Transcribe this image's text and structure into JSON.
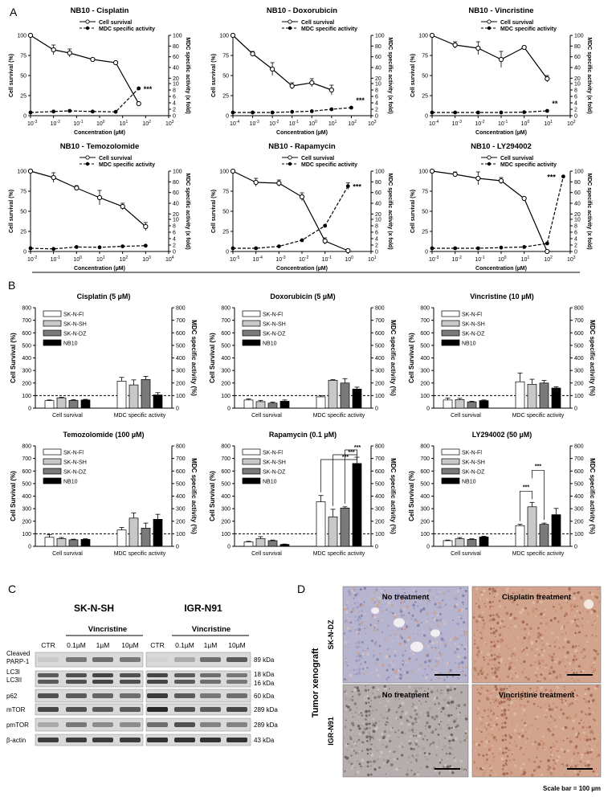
{
  "panel_letters": [
    "A",
    "B",
    "C",
    "D"
  ],
  "colors": {
    "sk_n_fl": "#ffffff",
    "sk_n_sh": "#c8c8c8",
    "sk_n_dz": "#7a7a7a",
    "nb10": "#000000",
    "ihc_blue": "#9a9ab8",
    "ihc_brown": "#c89478"
  },
  "chart_data": [
    {
      "panel": "A",
      "type": "line",
      "title": "NB10 - Cisplatin",
      "xlabel": "Concentration (µM)",
      "ylabel": "Cell survival (%)",
      "y2label": "MDC specific activity (x fold)",
      "x_scale": "log",
      "xlim_exp": [
        -3,
        3
      ],
      "legend": [
        "Cell survival",
        "MDC specific activity"
      ],
      "series": [
        {
          "name": "Cell survival",
          "x_exp": [
            -3,
            -2,
            -1.3,
            -0.3,
            0.7,
            1.7
          ],
          "values": [
            100,
            82,
            78,
            70,
            66,
            15
          ],
          "err": [
            0,
            6,
            5,
            0,
            0,
            0
          ]
        },
        {
          "name": "MDC specific activity",
          "x_exp": [
            -3,
            -2,
            -1.3,
            -0.3,
            0.7,
            1.7
          ],
          "values": [
            1,
            1.3,
            1.5,
            1.3,
            1.2,
            8.5
          ]
        }
      ],
      "annotation": "***"
    },
    {
      "panel": "A",
      "type": "line",
      "title": "NB10 - Doxorubicin",
      "xlabel": "Concentration (µM)",
      "ylabel": "Cell survival (%)",
      "y2label": "MDC specific activity (x fold)",
      "x_scale": "log",
      "xlim_exp": [
        -4,
        3
      ],
      "legend": [
        "Cell survival",
        "MDC specific activity"
      ],
      "series": [
        {
          "name": "Cell survival",
          "x_exp": [
            -4,
            -3,
            -2,
            -1,
            0,
            1,
            2
          ],
          "values": [
            100,
            77,
            58,
            37,
            41,
            32,
            null
          ],
          "err": [
            0,
            3,
            8,
            4,
            5,
            6,
            0
          ]
        },
        {
          "name": "MDC specific activity",
          "x_exp": [
            -4,
            -3,
            -2,
            -1,
            0,
            1,
            2
          ],
          "values": [
            1,
            1,
            1,
            1.2,
            1.4,
            2,
            2.5
          ]
        }
      ],
      "annotation": "***"
    },
    {
      "panel": "A",
      "type": "line",
      "title": "NB10 - Vincristine",
      "xlabel": "Concentration (µM)",
      "ylabel": "Cell survival (%)",
      "y2label": "MDC specific activity (x fold)",
      "x_scale": "log",
      "xlim_exp": [
        -4,
        2
      ],
      "legend": [
        "Cell survival",
        "MDC specific activity"
      ],
      "series": [
        {
          "name": "Cell survival",
          "x_exp": [
            -4,
            -3,
            -2,
            -1,
            0,
            1
          ],
          "values": [
            100,
            88,
            84,
            70,
            85,
            46
          ],
          "err": [
            0,
            4,
            8,
            10,
            0,
            4
          ]
        },
        {
          "name": "MDC specific activity",
          "x_exp": [
            -4,
            -3,
            -2,
            -1,
            0,
            1
          ],
          "values": [
            1,
            1,
            1,
            1,
            1.1,
            1.5
          ]
        }
      ],
      "annotation": "**"
    },
    {
      "panel": "A",
      "type": "line",
      "title": "NB10 - Temozolomide",
      "xlabel": "Concentration (µM)",
      "ylabel": "Cell survival (%)",
      "y2label": "MDC specific activity (x fold)",
      "x_scale": "log",
      "xlim_exp": [
        -2,
        4
      ],
      "legend": [
        "Cell survival",
        "MDC specific activity"
      ],
      "series": [
        {
          "name": "Cell survival",
          "x_exp": [
            -2,
            -1,
            0,
            1,
            2,
            3
          ],
          "values": [
            100,
            92,
            79,
            67,
            56,
            31
          ],
          "err": [
            0,
            6,
            3,
            9,
            4,
            5
          ]
        },
        {
          "name": "MDC specific activity",
          "x_exp": [
            -2,
            -1,
            0,
            1,
            2,
            3
          ],
          "values": [
            1,
            0.8,
            1.4,
            1.3,
            1.6,
            1.8
          ]
        }
      ],
      "annotation": ""
    },
    {
      "panel": "A",
      "type": "line",
      "title": "NB10 - Rapamycin",
      "xlabel": "Concentration (µM)",
      "ylabel": "Cell survival (%)",
      "y2label": "MDC specific activity (x fold)",
      "x_scale": "log",
      "xlim_exp": [
        -5,
        1
      ],
      "legend": [
        "Cell survival",
        "MDC specific activity"
      ],
      "series": [
        {
          "name": "Cell survival",
          "x_exp": [
            -5,
            -4,
            -3,
            -2,
            -1,
            0
          ],
          "values": [
            100,
            86,
            85,
            68,
            13,
            1
          ],
          "err": [
            0,
            5,
            4,
            5,
            4,
            0
          ]
        },
        {
          "name": "MDC specific activity",
          "x_exp": [
            -5,
            -4,
            -3,
            -2,
            -1,
            0
          ],
          "values": [
            1,
            1,
            1.6,
            3.5,
            8,
            72
          ],
          "err": [
            0,
            0,
            0,
            0,
            0,
            6
          ]
        }
      ],
      "annotation": "***"
    },
    {
      "panel": "A",
      "type": "line",
      "title": "NB10 - LY294002",
      "xlabel": "Concentration (µM)",
      "ylabel": "Cell survival (%)",
      "y2label": "MDC specific activity (x fold)",
      "x_scale": "log",
      "xlim_exp": [
        -3,
        3
      ],
      "legend": [
        "Cell survival",
        "MDC specific activity"
      ],
      "series": [
        {
          "name": "Cell survival",
          "x_exp": [
            -3,
            -2,
            -1,
            0,
            1,
            2,
            2.7
          ],
          "values": [
            100,
            96,
            91,
            88,
            66,
            0,
            null
          ],
          "err": [
            0,
            3,
            8,
            4,
            0,
            0,
            0
          ]
        },
        {
          "name": "MDC specific activity",
          "x_exp": [
            -3,
            -2,
            -1,
            0,
            1,
            2,
            2.7
          ],
          "values": [
            1,
            1,
            1,
            1.2,
            1.4,
            2.5,
            90
          ]
        }
      ],
      "annotation": "***"
    },
    {
      "panel": "B",
      "type": "bar",
      "title": "Cisplatin (5 µM)",
      "categories": [
        "Cell survival",
        "MDC specific activity"
      ],
      "ylabel": "Cell Survival (%)",
      "y2label": "MDC specific activity (%)",
      "ylim": [
        0,
        800
      ],
      "baseline": 100,
      "series": [
        {
          "name": "SK-N-Fl",
          "values": [
            60,
            215
          ],
          "err": [
            5,
            30
          ]
        },
        {
          "name": "SK-N-SH",
          "values": [
            82,
            185
          ],
          "err": [
            5,
            40
          ]
        },
        {
          "name": "SK-N-DZ",
          "values": [
            62,
            228
          ],
          "err": [
            5,
            25
          ]
        },
        {
          "name": "NB10",
          "values": [
            65,
            105
          ],
          "err": [
            5,
            18
          ]
        }
      ],
      "annotation": ""
    },
    {
      "panel": "B",
      "type": "bar",
      "title": "Doxorubicin (5 µM)",
      "categories": [
        "Cell survival",
        "MDC specific activity"
      ],
      "ylabel": "Cell Survival (%)",
      "y2label": "MDC specific activity (%)",
      "ylim": [
        0,
        800
      ],
      "baseline": 100,
      "series": [
        {
          "name": "SK-N-Fl",
          "values": [
            65,
            90
          ],
          "err": [
            8,
            10
          ]
        },
        {
          "name": "SK-N-SH",
          "values": [
            52,
            222
          ],
          "err": [
            10,
            5
          ]
        },
        {
          "name": "SK-N-DZ",
          "values": [
            40,
            200
          ],
          "err": [
            8,
            35
          ]
        },
        {
          "name": "NB10",
          "values": [
            55,
            152
          ],
          "err": [
            10,
            15
          ]
        }
      ],
      "annotation": ""
    },
    {
      "panel": "B",
      "type": "bar",
      "title": "Vincristine (10 µM)",
      "categories": [
        "Cell survival",
        "MDC specific activity"
      ],
      "ylabel": "Cell Survival (%)",
      "y2label": "MDC specific activity (%)",
      "ylim": [
        0,
        800
      ],
      "baseline": 100,
      "series": [
        {
          "name": "SK-N-Fl",
          "values": [
            65,
            210
          ],
          "err": [
            15,
            70
          ]
        },
        {
          "name": "SK-N-SH",
          "values": [
            68,
            190
          ],
          "err": [
            10,
            40
          ]
        },
        {
          "name": "SK-N-DZ",
          "values": [
            50,
            200
          ],
          "err": [
            5,
            20
          ]
        },
        {
          "name": "NB10",
          "values": [
            60,
            160
          ],
          "err": [
            5,
            10
          ]
        }
      ],
      "annotation": ""
    },
    {
      "panel": "B",
      "type": "bar",
      "title": "Temozolomide (100 µM)",
      "categories": [
        "Cell survival",
        "MDC specific activity"
      ],
      "ylabel": "Cell Survival (%)",
      "y2label": "MDC specific activity (%)",
      "ylim": [
        0,
        800
      ],
      "baseline": 100,
      "series": [
        {
          "name": "SK-N-Fl",
          "values": [
            72,
            130
          ],
          "err": [
            20,
            20
          ]
        },
        {
          "name": "SK-N-SH",
          "values": [
            62,
            225
          ],
          "err": [
            8,
            40
          ]
        },
        {
          "name": "SK-N-DZ",
          "values": [
            52,
            145
          ],
          "err": [
            5,
            40
          ]
        },
        {
          "name": "NB10",
          "values": [
            55,
            215
          ],
          "err": [
            5,
            40
          ]
        }
      ],
      "annotation": ""
    },
    {
      "panel": "B",
      "type": "bar",
      "title": "Rapamycin (0.1 µM)",
      "categories": [
        "Cell survival",
        "MDC specific activity"
      ],
      "ylabel": "Cell Survival (%)",
      "y2label": "MDC specific activity (%)",
      "ylim": [
        0,
        800
      ],
      "baseline": 100,
      "series": [
        {
          "name": "SK-N-Fl",
          "values": [
            35,
            355
          ],
          "err": [
            5,
            50
          ]
        },
        {
          "name": "SK-N-SH",
          "values": [
            62,
            235
          ],
          "err": [
            15,
            60
          ]
        },
        {
          "name": "SK-N-DZ",
          "values": [
            45,
            305
          ],
          "err": [
            5,
            10
          ]
        },
        {
          "name": "NB10",
          "values": [
            15,
            660
          ],
          "err": [
            3,
            50
          ]
        }
      ],
      "annotation": "***"
    },
    {
      "panel": "B",
      "type": "bar",
      "title": "LY294002 (50 µM)",
      "categories": [
        "Cell survival",
        "MDC specific activity"
      ],
      "ylabel": "Cell Survival (%)",
      "y2label": "MDC specific activity (%)",
      "ylim": [
        0,
        800
      ],
      "baseline": 100,
      "series": [
        {
          "name": "SK-N-Fl",
          "values": [
            45,
            165
          ],
          "err": [
            5,
            10
          ]
        },
        {
          "name": "SK-N-SH",
          "values": [
            60,
            315
          ],
          "err": [
            10,
            35
          ]
        },
        {
          "name": "SK-N-DZ",
          "values": [
            55,
            175
          ],
          "err": [
            5,
            10
          ]
        },
        {
          "name": "NB10",
          "values": [
            75,
            252
          ],
          "err": [
            5,
            50
          ]
        }
      ],
      "annotation": "***"
    }
  ],
  "legend_b": [
    "SK-N-Fl",
    "SK-N-SH",
    "SK-N-DZ",
    "NB10"
  ],
  "blot": {
    "cell_lines": [
      "SK-N-SH",
      "IGR-N91"
    ],
    "treatment": "Vincristine",
    "lanes": [
      "CTR",
      "0.1µM",
      "1µM",
      "10µM"
    ],
    "rows": [
      {
        "label": "Cleaved PARP-1",
        "label_lines": [
          "Cleaved",
          "PARP-1"
        ],
        "kda": [
          "89 kDa"
        ],
        "int_left": [
          0.15,
          0.55,
          0.6,
          0.55
        ],
        "int_right": [
          0.1,
          0.3,
          0.6,
          0.7
        ]
      },
      {
        "label": "LC3I LC3II",
        "label_lines": [
          "LC3I",
          "LC3II"
        ],
        "kda": [
          "18 kDa",
          "16 kDa"
        ],
        "int_left": [
          0.7,
          0.75,
          0.8,
          0.75
        ],
        "int_right": [
          0.8,
          0.7,
          0.6,
          0.55
        ]
      },
      {
        "label": "p62",
        "label_lines": [
          "p62"
        ],
        "kda": [
          "60 kDa"
        ],
        "int_left": [
          0.75,
          0.7,
          0.65,
          0.6
        ],
        "int_right": [
          0.85,
          0.7,
          0.55,
          0.6
        ]
      },
      {
        "label": "mTOR",
        "label_lines": [
          "mTOR"
        ],
        "kda": [
          "289 kDa"
        ],
        "int_left": [
          0.8,
          0.75,
          0.7,
          0.7
        ],
        "int_right": [
          0.95,
          0.75,
          0.7,
          0.8
        ]
      },
      {
        "label": "pmTOR",
        "label_lines": [
          "pmTOR"
        ],
        "kda": [
          "289 kDa"
        ],
        "int_left": [
          0.3,
          0.55,
          0.45,
          0.45
        ],
        "int_right": [
          0.6,
          0.75,
          0.5,
          0.5
        ]
      },
      {
        "label": "β-actin",
        "label_lines": [
          "β-actin"
        ],
        "kda": [
          "43 kDa"
        ],
        "int_left": [
          0.85,
          0.85,
          0.85,
          0.85
        ],
        "int_right": [
          0.9,
          0.9,
          0.9,
          0.9
        ]
      }
    ]
  },
  "histology": {
    "side_title": "Tumor xenograft",
    "row_labels": [
      "SK-N-DZ",
      "IGR-N91"
    ],
    "panels": [
      {
        "label": "No treatment",
        "tone": "blue"
      },
      {
        "label": "Cisplatin treatment",
        "tone": "brown"
      },
      {
        "label": "No treatment",
        "tone": "grey"
      },
      {
        "label": "Vincristine treatment",
        "tone": "brown"
      }
    ],
    "scale_bar": "Scale bar = 100 µm"
  }
}
